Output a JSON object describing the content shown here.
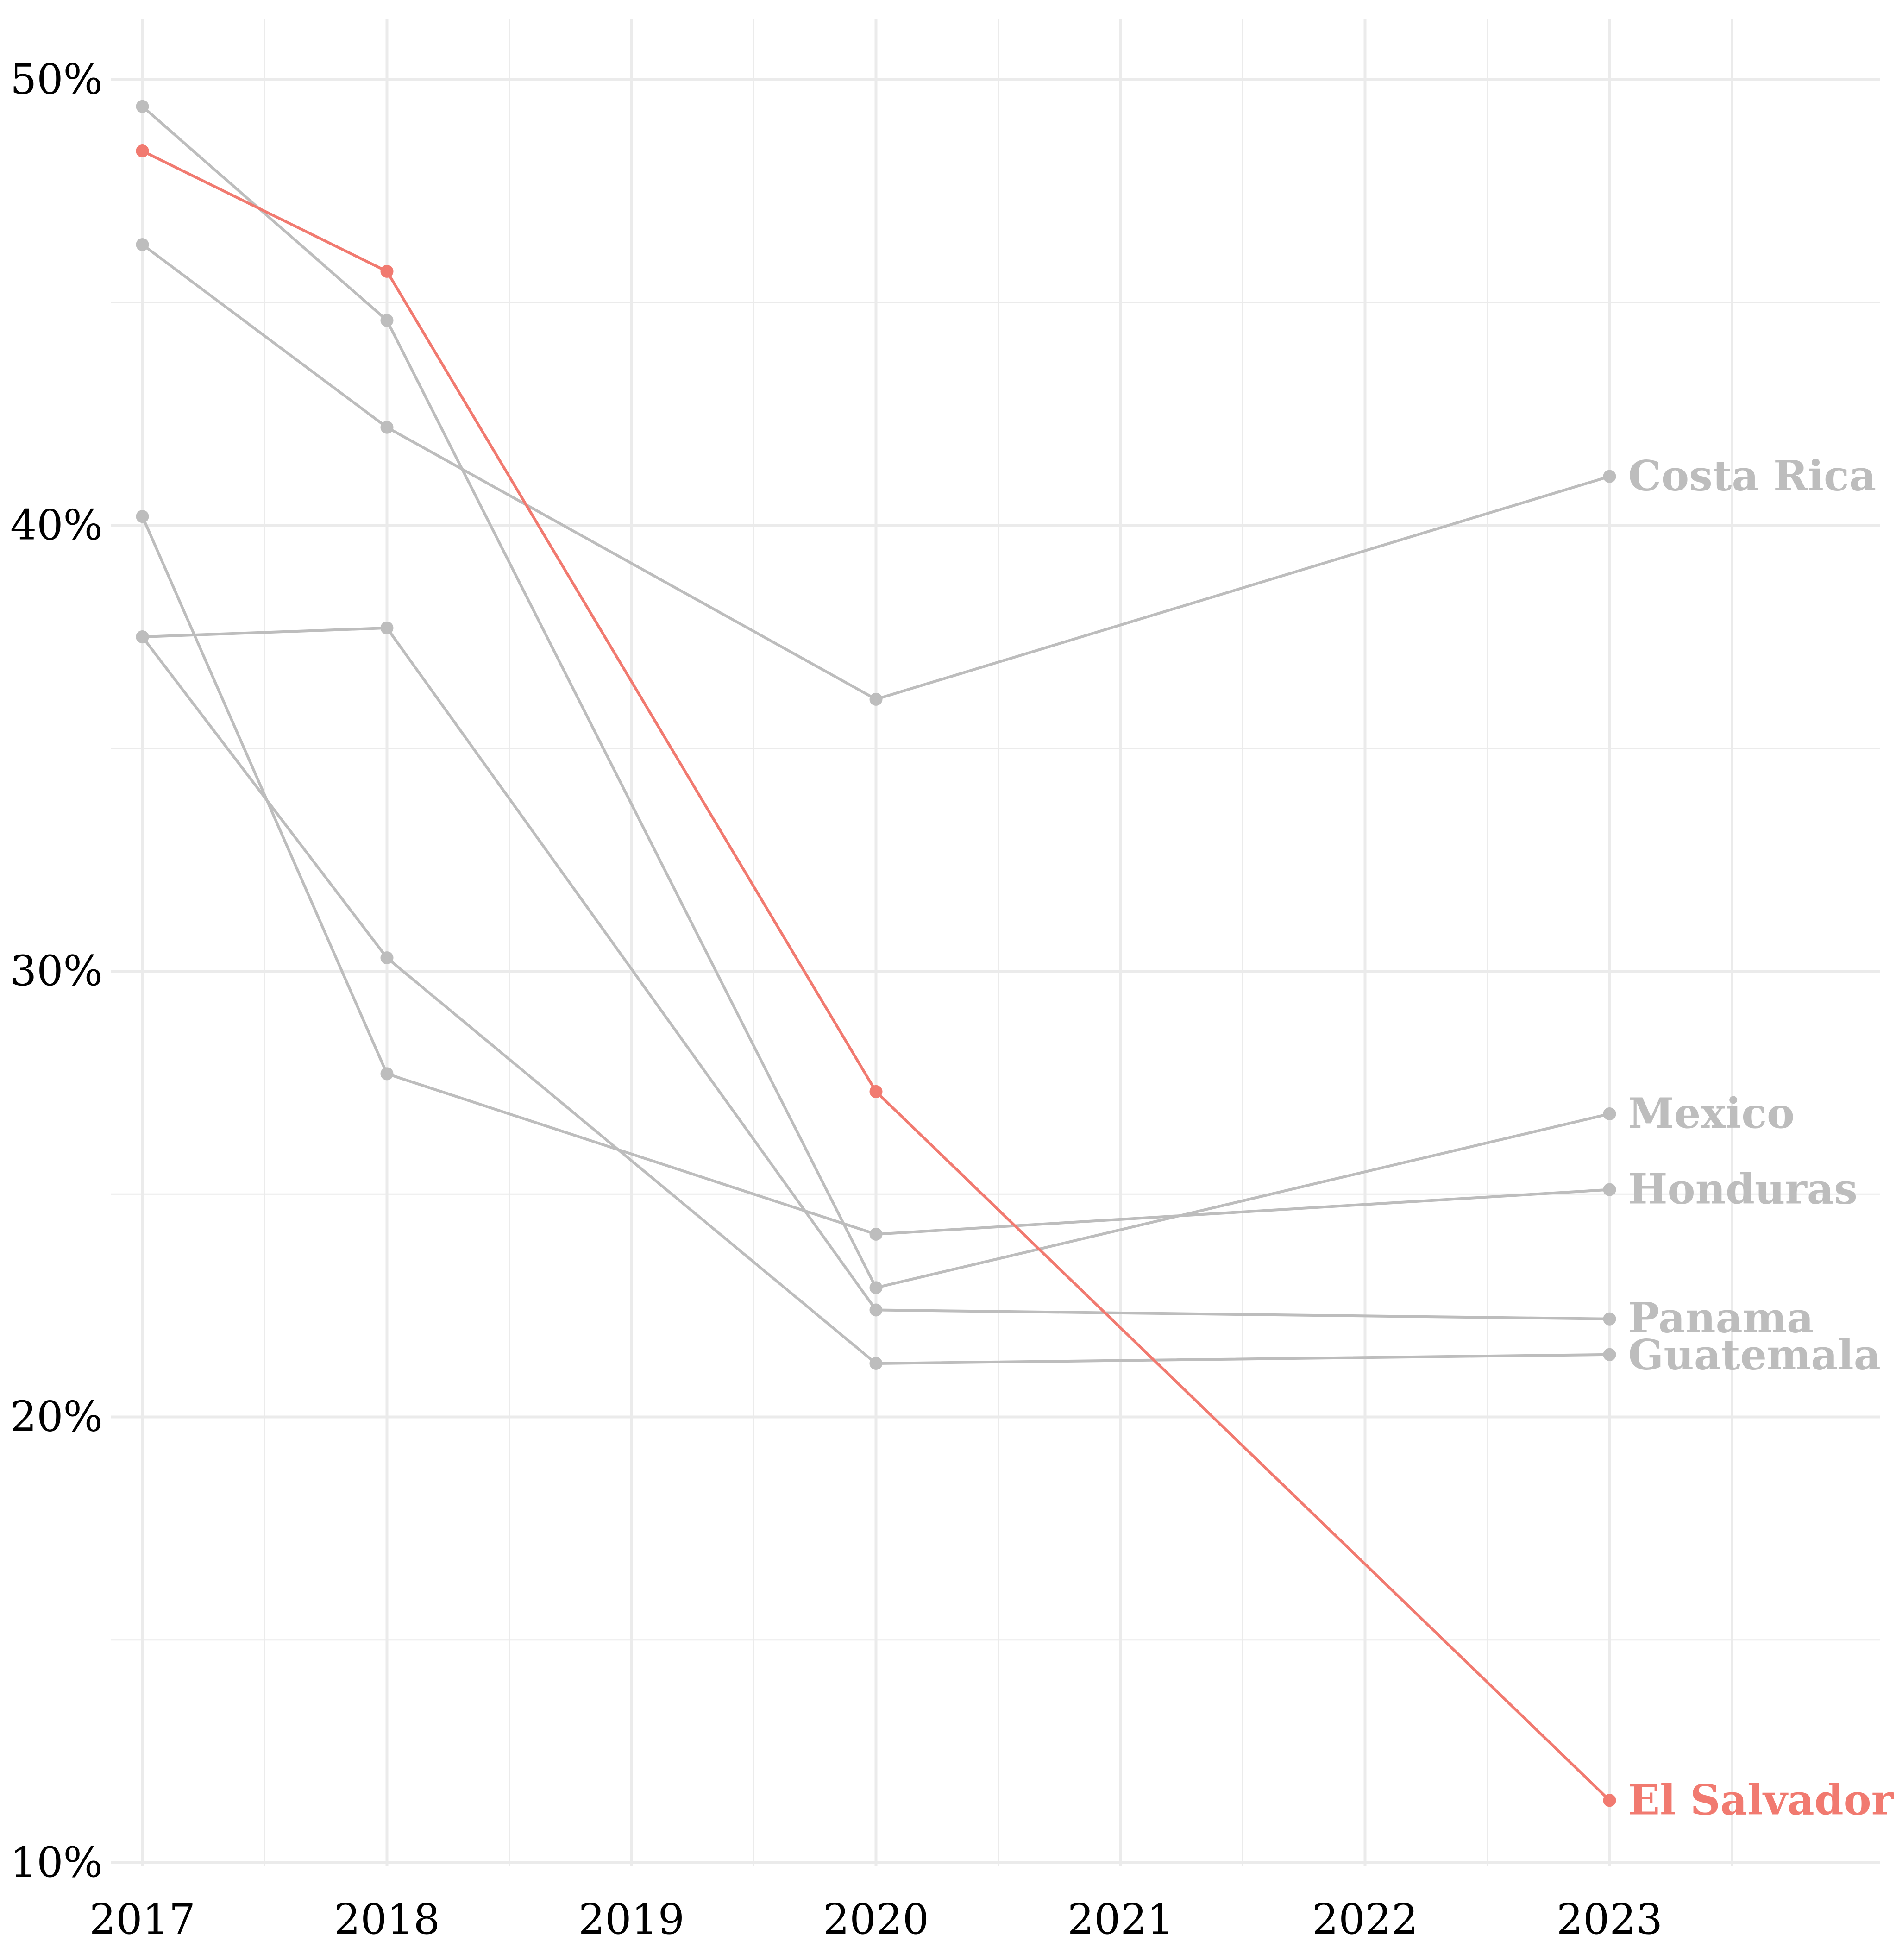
{
  "chart_data": {
    "type": "line",
    "title": "",
    "xlabel": "",
    "ylabel": "",
    "x_ticks": [
      "2017",
      "2018",
      "2019",
      "2020",
      "2021",
      "2022",
      "2023"
    ],
    "y_ticks": [
      "10%",
      "20%",
      "30%",
      "40%",
      "50%"
    ],
    "xlim": [
      2017,
      2024
    ],
    "ylim": [
      10,
      51
    ],
    "grid": true,
    "legend": "direct labels at line ends",
    "colors": {
      "highlight": "#f17a70",
      "muted": "#bdbdbd",
      "grid": "#ebebeb"
    },
    "series": [
      {
        "name": "Costa Rica",
        "color": "#bdbdbd",
        "highlight": false,
        "x": [
          2017,
          2018,
          2020,
          2023
        ],
        "y": [
          46.3,
          42.2,
          36.1,
          41.1
        ]
      },
      {
        "name": "Mexico",
        "color": "#bdbdbd",
        "highlight": false,
        "x": [
          2017,
          2018,
          2020,
          2023
        ],
        "y": [
          49.4,
          44.6,
          22.9,
          26.8
        ]
      },
      {
        "name": "Honduras",
        "color": "#bdbdbd",
        "highlight": false,
        "x": [
          2017,
          2018,
          2020,
          2023
        ],
        "y": [
          40.2,
          27.7,
          24.1,
          25.1
        ]
      },
      {
        "name": "Panama",
        "color": "#bdbdbd",
        "highlight": false,
        "x": [
          2017,
          2018,
          2020,
          2023
        ],
        "y": [
          37.5,
          37.7,
          22.4,
          22.2
        ]
      },
      {
        "name": "Guatemala",
        "color": "#bdbdbd",
        "highlight": false,
        "x": [
          2017,
          2018,
          2020,
          2023
        ],
        "y": [
          37.5,
          30.3,
          21.2,
          21.4
        ]
      },
      {
        "name": "El Salvador",
        "color": "#f17a70",
        "highlight": true,
        "x": [
          2017,
          2018,
          2020,
          2023
        ],
        "y": [
          48.4,
          45.7,
          27.3,
          11.4
        ]
      }
    ]
  }
}
